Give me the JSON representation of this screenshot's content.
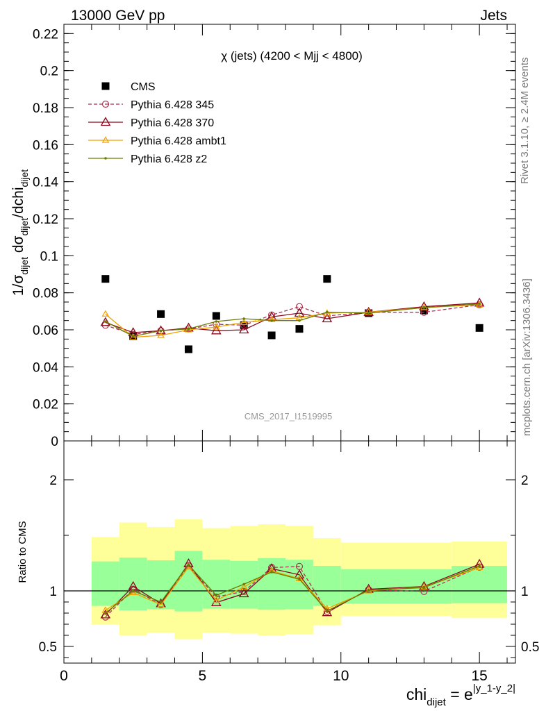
{
  "header": {
    "left": "13000 GeV pp",
    "right": "Jets"
  },
  "side_labels": {
    "rivet": "Rivet 3.1.10, ≥ 2.4M events",
    "mcplots": "mcplots.cern.ch [arXiv:1306.3436]"
  },
  "chart_data": [
    {
      "type": "scatter",
      "title": "χ (jets) (4200 < Mjj < 4800)",
      "watermark": "CMS_2017_I1519995",
      "ylabel_parts": [
        "1/σ",
        "dijet",
        " dσ",
        "dijet",
        "/dchi",
        "dijet"
      ],
      "xlim": [
        0,
        16.3
      ],
      "ylim": [
        0,
        0.225
      ],
      "yticks": [
        0,
        0.02,
        0.04,
        0.06,
        0.08,
        0.1,
        0.12,
        0.14,
        0.16,
        0.18,
        0.2,
        0.22
      ],
      "ytick_labels": [
        "0",
        "0.02",
        "0.04",
        "0.06",
        "0.08",
        "0.1",
        "0.12",
        "0.14",
        "0.16",
        "0.18",
        "0.2",
        "0.22"
      ],
      "legend_position": "top-left",
      "x": [
        1.5,
        2.5,
        3.5,
        4.5,
        5.5,
        6.5,
        7.5,
        8.5,
        9.5,
        11,
        13,
        15
      ],
      "series": [
        {
          "name": "CMS",
          "style": "data-square",
          "color": "#000000",
          "values": [
            0.0875,
            0.0565,
            0.0685,
            0.0495,
            0.0675,
            0.0625,
            0.057,
            0.0605,
            0.0875,
            0.069,
            0.0705,
            0.061
          ]
        },
        {
          "name": "Pythia 6.428 345",
          "style": "circle-dashed",
          "color": "#b03050",
          "values": [
            0.0625,
            0.0575,
            0.0595,
            0.0605,
            0.063,
            0.0625,
            0.068,
            0.0725,
            0.0675,
            0.0695,
            0.0695,
            0.0735
          ]
        },
        {
          "name": "Pythia 6.428 370",
          "style": "triangle",
          "color": "#8b0a1e",
          "values": [
            0.064,
            0.0585,
            0.0595,
            0.061,
            0.0595,
            0.06,
            0.067,
            0.069,
            0.066,
            0.0695,
            0.0725,
            0.0745
          ]
        },
        {
          "name": "Pythia 6.428 ambt1",
          "style": "triangle-small",
          "color": "#f0a000",
          "values": [
            0.0685,
            0.056,
            0.057,
            0.06,
            0.0615,
            0.064,
            0.0655,
            0.0665,
            0.069,
            0.0695,
            0.072,
            0.0735
          ]
        },
        {
          "name": "Pythia 6.428 z2",
          "style": "dot",
          "color": "#6b7d00",
          "values": [
            0.0645,
            0.0565,
            0.0595,
            0.0605,
            0.0645,
            0.066,
            0.065,
            0.065,
            0.0695,
            0.069,
            0.072,
            0.074
          ]
        }
      ]
    },
    {
      "type": "area",
      "ylabel": "Ratio to CMS",
      "xlabel_parts": [
        "chi",
        "dijet",
        " = e",
        "|y_1-y_2|"
      ],
      "xlim": [
        0,
        16.3
      ],
      "ylim": [
        0.35,
        2.35
      ],
      "xticks": [
        0,
        5,
        10,
        15
      ],
      "xtick_labels": [
        "0",
        "5",
        "10",
        "15"
      ],
      "yticks": [
        0.5,
        1,
        2
      ],
      "ytick_labels": [
        "0.5",
        "1",
        "2"
      ],
      "reference_line": 1,
      "bins": [
        {
          "lo": 1,
          "hi": 2,
          "inner": [
            0.865,
            1.265
          ],
          "outer": [
            0.695,
            1.485
          ]
        },
        {
          "lo": 2,
          "hi": 3,
          "inner": [
            0.825,
            1.3
          ],
          "outer": [
            0.6,
            1.615
          ]
        },
        {
          "lo": 3,
          "hi": 4,
          "inner": [
            0.835,
            1.275
          ],
          "outer": [
            0.625,
            1.575
          ]
        },
        {
          "lo": 4,
          "hi": 5,
          "inner": [
            0.815,
            1.36
          ],
          "outer": [
            0.565,
            1.645
          ]
        },
        {
          "lo": 5,
          "hi": 6,
          "inner": [
            0.84,
            1.28
          ],
          "outer": [
            0.625,
            1.565
          ]
        },
        {
          "lo": 6,
          "hi": 7,
          "inner": [
            0.84,
            1.27
          ],
          "outer": [
            0.615,
            1.585
          ]
        },
        {
          "lo": 7,
          "hi": 8,
          "inner": [
            0.83,
            1.295
          ],
          "outer": [
            0.6,
            1.6
          ]
        },
        {
          "lo": 8,
          "hi": 9,
          "inner": [
            0.835,
            1.28
          ],
          "outer": [
            0.61,
            1.585
          ]
        },
        {
          "lo": 9,
          "hi": 10,
          "inner": [
            0.865,
            1.225
          ],
          "outer": [
            0.69,
            1.475
          ]
        },
        {
          "lo": 10,
          "hi": 12,
          "inner": [
            0.885,
            1.195
          ],
          "outer": [
            0.775,
            1.435
          ]
        },
        {
          "lo": 12,
          "hi": 14,
          "inner": [
            0.885,
            1.195
          ],
          "outer": [
            0.775,
            1.435
          ]
        },
        {
          "lo": 14,
          "hi": 16,
          "inner": [
            0.89,
            1.225
          ],
          "outer": [
            0.755,
            1.445
          ]
        }
      ],
      "x": [
        1.5,
        2.5,
        3.5,
        4.5,
        5.5,
        6.5,
        7.5,
        8.5,
        9.5,
        11,
        13,
        15
      ],
      "series": [
        {
          "name": "Pythia 6.428 345",
          "style": "circle-dashed",
          "color": "#b03050",
          "values": [
            0.765,
            1.015,
            0.875,
            1.225,
            0.945,
            0.995,
            1.21,
            1.22,
            0.815,
            1.01,
            0.995,
            1.215
          ]
        },
        {
          "name": "Pythia 6.428 370",
          "style": "triangle",
          "color": "#8b0a1e",
          "values": [
            0.785,
            1.04,
            0.885,
            1.245,
            0.895,
            0.975,
            1.2,
            1.145,
            0.805,
            1.015,
            1.04,
            1.24
          ]
        },
        {
          "name": "Pythia 6.428 ambt1",
          "style": "triangle-small",
          "color": "#f0a000",
          "values": [
            0.825,
            0.985,
            0.875,
            1.215,
            0.915,
            1.035,
            1.18,
            1.11,
            0.84,
            1.0,
            1.035,
            1.21
          ]
        },
        {
          "name": "Pythia 6.428 z2",
          "style": "dot",
          "color": "#6b7d00",
          "values": [
            0.8,
            1.0,
            0.9,
            1.235,
            0.96,
            1.06,
            1.17,
            1.105,
            0.82,
            1.005,
            1.03,
            1.225
          ]
        }
      ]
    }
  ]
}
